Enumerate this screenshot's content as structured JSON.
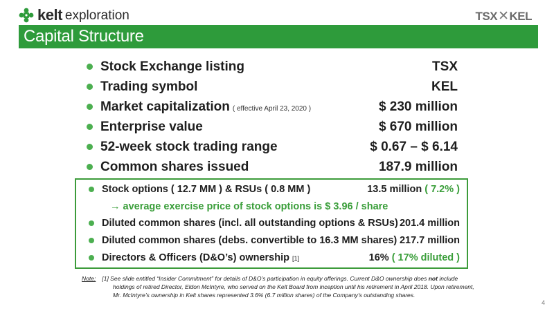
{
  "header": {
    "logo_bold": "kelt",
    "logo_light": "exploration",
    "tsx_left": "TSX",
    "tsx_right": "KEL",
    "title": "Capital Structure"
  },
  "main_items": [
    {
      "label": "Stock Exchange listing",
      "note": "",
      "value": "TSX"
    },
    {
      "label": "Trading symbol",
      "note": "",
      "value": "KEL"
    },
    {
      "label": "Market capitalization",
      "note": "( effective April 23, 2020 )",
      "value": "$ 230 million"
    },
    {
      "label": "Enterprise value",
      "note": "",
      "value": "$ 670 million"
    },
    {
      "label": "52-week stock trading range",
      "note": "",
      "value": "$ 0.67 – $ 6.14"
    },
    {
      "label": "Common shares issued",
      "note": "",
      "value": "187.9 million"
    }
  ],
  "box_items": {
    "options": {
      "label": "Stock options ( 12.7 MM ) & RSUs ( 0.8 MM )",
      "value": "13.5 million",
      "pct": "( 7.2% )"
    },
    "exercise_note": "→ average exercise price of stock options is $ 3.96 / share",
    "diluted_all": {
      "label": "Diluted common shares (incl. all outstanding options & RSUs)",
      "value": "201.4 million"
    },
    "diluted_debs": {
      "label": "Diluted common shares (debs. convertible to 16.3 MM shares)",
      "value": "217.7 million"
    },
    "ownership": {
      "label": "Directors & Officers (D&O’s) ownership",
      "ref": "[1]",
      "value": "16%",
      "pct": "( 17% diluted )"
    }
  },
  "footnote": {
    "lead": "Note:",
    "line1": "[1] See slide entitled “Insider Commitment” for details of D&O’s participation in equity offerings. Current D&O ownership does",
    "line1_bold": "not",
    "line1_end": "include",
    "line2": "holdings of retired Director, Eldon McIntyre, who served on the Kelt Board from inception until his retirement in April 2018. Upon retirement,",
    "line3": "Mr. McIntyre’s ownership in Kelt shares represented 3.6% (6.7 million shares) of the Company’s outstanding shares."
  },
  "page_number": "4",
  "colors": {
    "accent": "#2e9b3b",
    "bullet": "#4caf50",
    "highlight": "#3a9e3a"
  }
}
